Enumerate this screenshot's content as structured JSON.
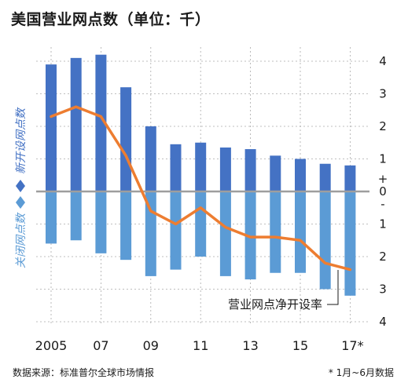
{
  "title": "美国营业网点数（单位：千）",
  "source": "数据来源：标准普尔全球市场情报",
  "footnote": "* 1月~6月数据",
  "colors": {
    "open": "#4472c4",
    "close": "#5b9bd5",
    "line": "#ed7d31",
    "zero": "#9e9e9e",
    "grid": "#aaaaaa"
  },
  "chart_data": {
    "type": "bar",
    "years": [
      "2005",
      "2006",
      "2007",
      "2008",
      "2009",
      "2010",
      "2011",
      "2012",
      "2013",
      "2014",
      "2015",
      "2016",
      "2017*"
    ],
    "x_tick_labels": [
      "2005",
      "",
      "07",
      "",
      "09",
      "",
      "11",
      "",
      "13",
      "",
      "15",
      "",
      "17*"
    ],
    "series": [
      {
        "name": "新开设网点数",
        "values": [
          3.9,
          4.1,
          4.2,
          3.2,
          2.0,
          1.45,
          1.5,
          1.35,
          1.3,
          1.1,
          1.0,
          0.85,
          0.8
        ]
      },
      {
        "name": "关闭网点数",
        "values": [
          -1.6,
          -1.5,
          -1.9,
          -2.1,
          -2.6,
          -2.4,
          -2.0,
          -2.6,
          -2.7,
          -2.5,
          -2.5,
          -3.0,
          -3.2
        ]
      },
      {
        "name": "营业网点净开设率",
        "values": [
          2.3,
          2.6,
          2.3,
          1.1,
          -0.6,
          -1.0,
          -0.5,
          -1.1,
          -1.4,
          -1.4,
          -1.5,
          -2.2,
          -2.4
        ]
      }
    ],
    "y_ticks_top": [
      "4",
      "3",
      "2",
      "1",
      "+"
    ],
    "y_zero": "0",
    "y_ticks_bottom": [
      "-",
      "1",
      "2",
      "3",
      "4"
    ],
    "ylim": [
      -4,
      4
    ],
    "ylabel_top": "新开设网点数",
    "ylabel_bottom": "关闭网点数",
    "line_label": "营业网点净开设率"
  }
}
